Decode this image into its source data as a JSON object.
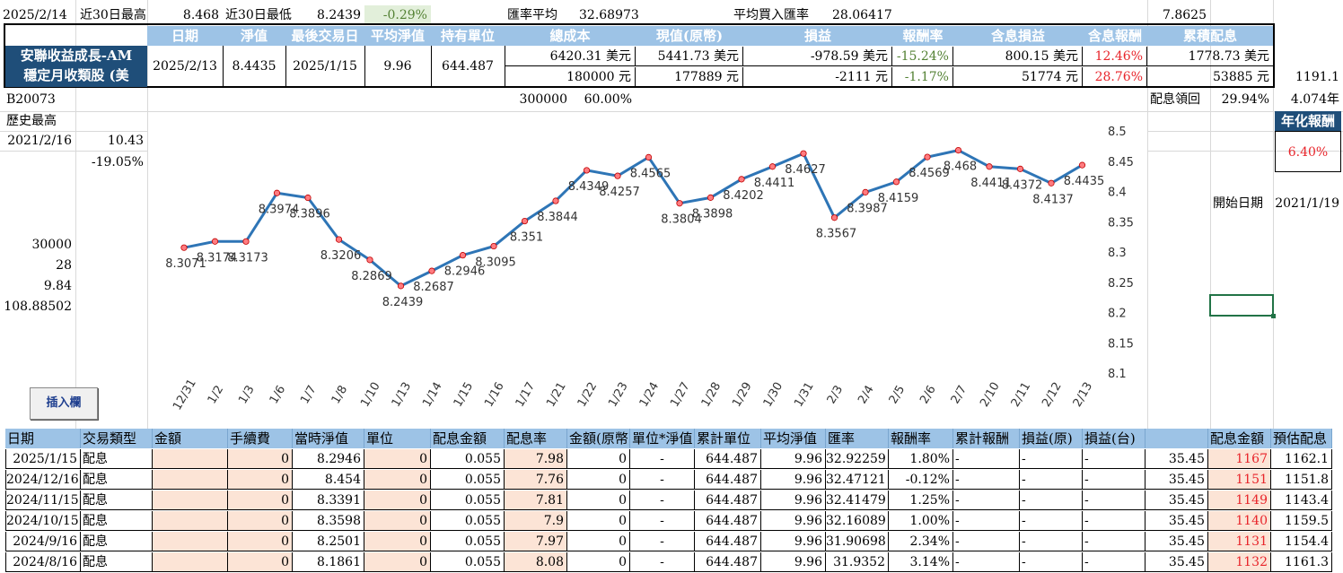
{
  "row1": {
    "date": "2025/2/14",
    "high30_label": "近30日最高",
    "high30_value": "8.468",
    "low30_label": "近30日最低",
    "low30_value": "8.2439",
    "change": "-0.29%",
    "fx_avg_label": "匯率平均",
    "fx_avg_value": "32.68973",
    "avg_buy_fx_label": "平均買入匯率",
    "avg_buy_fx_value": "28.06417",
    "right_value": "7.8625"
  },
  "summary_headers": [
    "日期",
    "淨值",
    "最後交易日",
    "平均淨值",
    "持有單位",
    "總成本",
    "現值(原幣)",
    "損益",
    "報酬率",
    "含息損益",
    "含息報酬",
    "累積配息"
  ],
  "fund": {
    "name_line1": "安聯收益成長-AM",
    "name_line2": "穩定月收類股 (美",
    "date": "2025/2/13",
    "nav": "8.4435",
    "last_trade": "2025/1/15",
    "avg_nav": "9.96",
    "units": "644.487",
    "cost_usd": "6420.31 美元",
    "cost_twd": "180000 元",
    "value_usd": "5441.73 美元",
    "value_twd": "177889 元",
    "pl_usd": "-978.59 美元",
    "pl_twd": "-2111 元",
    "ret_usd": "-15.24%",
    "ret_twd": "-1.17%",
    "divpl_usd": "800.15 美元",
    "divpl_twd": "51774 元",
    "divret_usd": "12.46%",
    "divret_twd": "28.76%",
    "cumdiv_usd": "1778.73 美元",
    "cumdiv_twd": "53885 元",
    "extra": "1191.1"
  },
  "row4": {
    "code": "B20073",
    "total": "300000",
    "pct": "60.00%",
    "div_return_label": "配息領回",
    "div_return_value": "29.94%",
    "years": "4.074年"
  },
  "left": {
    "hist_high_label": "歷史最高",
    "hist_high_date": "2021/2/16",
    "hist_high_value": "10.43",
    "hist_high_pct": "-19.05%",
    "v1": "30000",
    "v2": "28",
    "v3": "9.84",
    "v4": "108.88502"
  },
  "right": {
    "annual_label": "年化報酬",
    "annual_value": "6.40%",
    "start_label": "開始日期",
    "start_value": "2021/1/19"
  },
  "button_label": "插入欄",
  "chart_data": {
    "type": "line",
    "categories": [
      "12/31",
      "1/2",
      "1/3",
      "1/6",
      "1/7",
      "1/8",
      "1/10",
      "1/13",
      "1/14",
      "1/15",
      "1/16",
      "1/17",
      "1/21",
      "1/22",
      "1/23",
      "1/24",
      "1/27",
      "1/28",
      "1/29",
      "1/30",
      "1/31",
      "2/3",
      "2/4",
      "2/5",
      "2/6",
      "2/7",
      "2/10",
      "2/11",
      "2/12",
      "2/13"
    ],
    "values": [
      8.3071,
      8.3174,
      8.3173,
      8.3974,
      8.3896,
      8.3206,
      8.2869,
      8.2439,
      8.2687,
      8.2946,
      8.3095,
      8.351,
      8.3844,
      8.4349,
      8.4257,
      8.4565,
      8.3804,
      8.3898,
      8.4202,
      8.4411,
      8.4627,
      8.3567,
      8.3987,
      8.4159,
      8.4569,
      8.468,
      8.4411,
      8.4372,
      8.4137,
      8.4435
    ],
    "labels": [
      "8.3071",
      "8.3174",
      "8.3173",
      "8.3974",
      "8.3896",
      "8.3206",
      "8.2869",
      "8.2439",
      "8.2687",
      "8.2946",
      "8.3095",
      "8.351",
      "8.3844",
      "8.4349",
      "8.4257",
      "8.4565",
      "8.3804",
      "8.3898",
      "8.4202",
      "8.4411",
      "8.4627",
      "8.3567",
      "8.3987",
      "8.4159",
      "8.4569",
      "8.468",
      "8.4411",
      "8.4372",
      "8.4137",
      "8.4435"
    ],
    "yticks": [
      "8.1",
      "8.15",
      "8.2",
      "8.25",
      "8.3",
      "8.35",
      "8.4",
      "8.45",
      "8.5"
    ],
    "ylim": [
      8.1,
      8.5
    ],
    "line_color": "#2e75b6",
    "marker_color": "#ff7c80",
    "grid": false
  },
  "table": {
    "headers": [
      "日期",
      "交易類型",
      "金額",
      "手續費",
      "當時淨值",
      "單位",
      "配息金額",
      "配息率",
      "金額(原幣)",
      "單位*淨值",
      "累計單位",
      "平均淨值",
      "匯率",
      "報酬率",
      "累計報酬",
      "損益(原)",
      "損益(台)",
      "",
      "配息金額",
      "預估配息"
    ],
    "rows": [
      [
        "2025/1/15",
        "配息",
        "",
        "0",
        "8.2946",
        "0",
        "0.055",
        "7.98",
        "0",
        "-",
        "644.487",
        "9.96",
        "32.92259",
        "1.80%",
        "-",
        "-",
        "-",
        "35.45",
        "1167",
        "1162.1"
      ],
      [
        "2024/12/16",
        "配息",
        "",
        "0",
        "8.454",
        "0",
        "0.055",
        "7.76",
        "0",
        "-",
        "644.487",
        "9.96",
        "32.47121",
        "-0.12%",
        "-",
        "-",
        "-",
        "35.45",
        "1151",
        "1151.8"
      ],
      [
        "2024/11/15",
        "配息",
        "",
        "0",
        "8.3391",
        "0",
        "0.055",
        "7.81",
        "0",
        "-",
        "644.487",
        "9.96",
        "32.41479",
        "1.25%",
        "-",
        "-",
        "-",
        "35.45",
        "1149",
        "1143.4"
      ],
      [
        "2024/10/15",
        "配息",
        "",
        "0",
        "8.3598",
        "0",
        "0.055",
        "7.9",
        "0",
        "-",
        "644.487",
        "9.96",
        "32.16089",
        "1.00%",
        "-",
        "-",
        "-",
        "35.45",
        "1140",
        "1159.5"
      ],
      [
        "2024/9/16",
        "配息",
        "",
        "0",
        "8.2501",
        "0",
        "0.055",
        "7.97",
        "0",
        "-",
        "644.487",
        "9.96",
        "31.90698",
        "2.34%",
        "-",
        "-",
        "-",
        "35.45",
        "1131",
        "1154.4"
      ],
      [
        "2024/8/16",
        "配息",
        "",
        "0",
        "8.1861",
        "0",
        "0.055",
        "8.08",
        "0",
        "-",
        "644.487",
        "9.96",
        "31.9352",
        "3.14%",
        "-",
        "-",
        "-",
        "35.45",
        "1132",
        "1161.3"
      ]
    ]
  }
}
